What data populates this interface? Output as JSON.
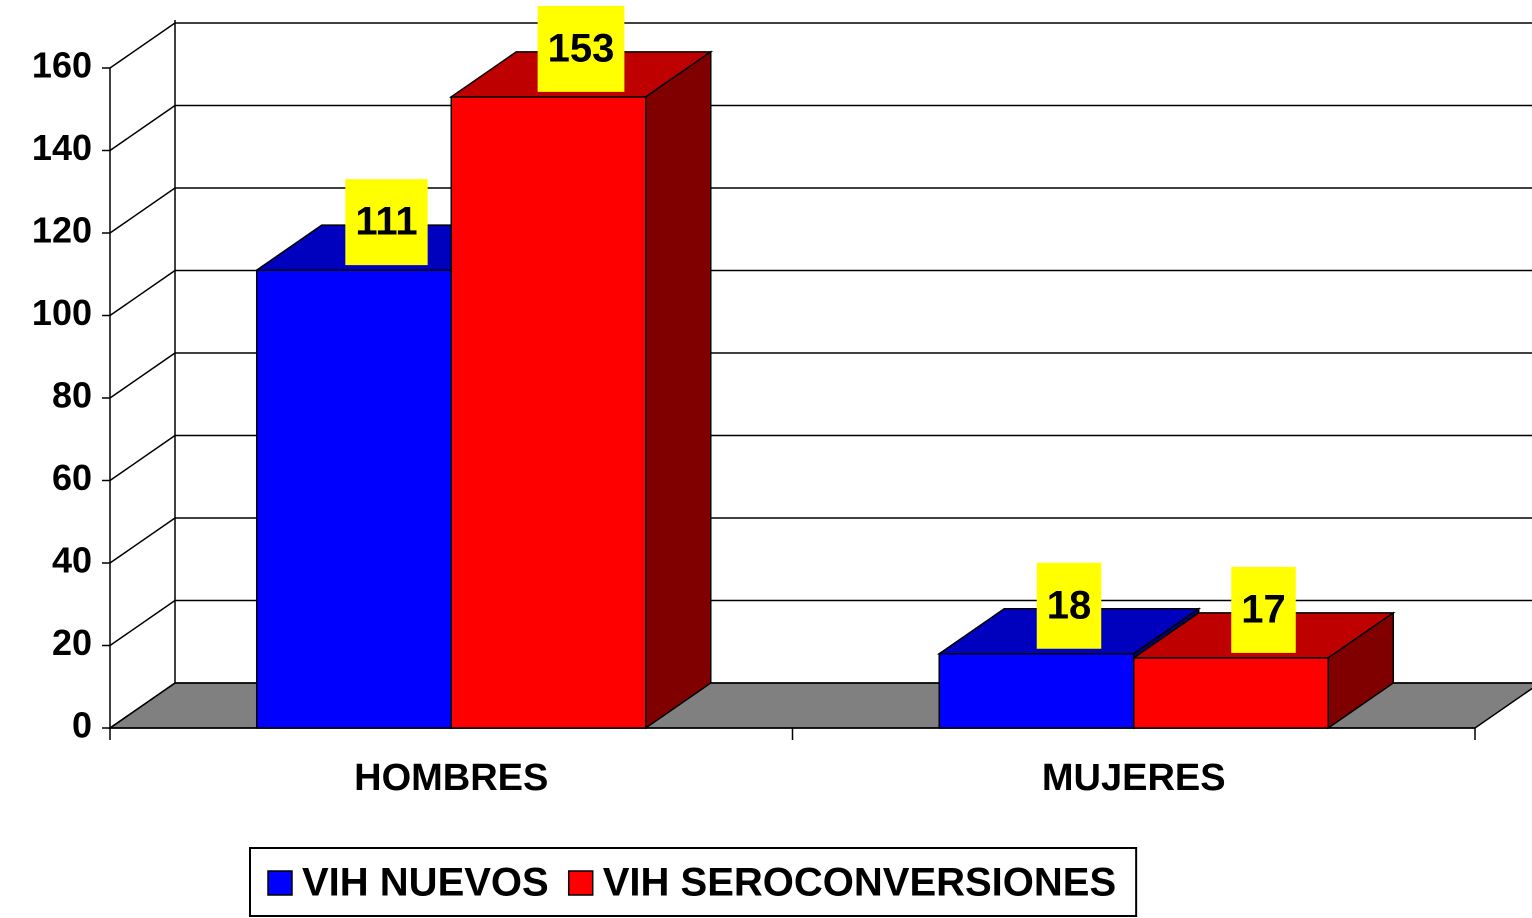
{
  "chart_data": {
    "type": "bar3d",
    "categories": [
      "HOMBRES",
      "MUJERES"
    ],
    "series": [
      {
        "name": "VIH NUEVOS",
        "color": "#0000ff",
        "values": [
          111,
          18
        ]
      },
      {
        "name": "VIH SEROCONVERSIONES",
        "color": "#ff0000",
        "values": [
          153,
          17
        ]
      }
    ],
    "ylim": [
      0,
      160
    ],
    "yticks": [
      0,
      20,
      40,
      60,
      80,
      100,
      120,
      140,
      160
    ],
    "grid": true,
    "legend": "bottom"
  }
}
